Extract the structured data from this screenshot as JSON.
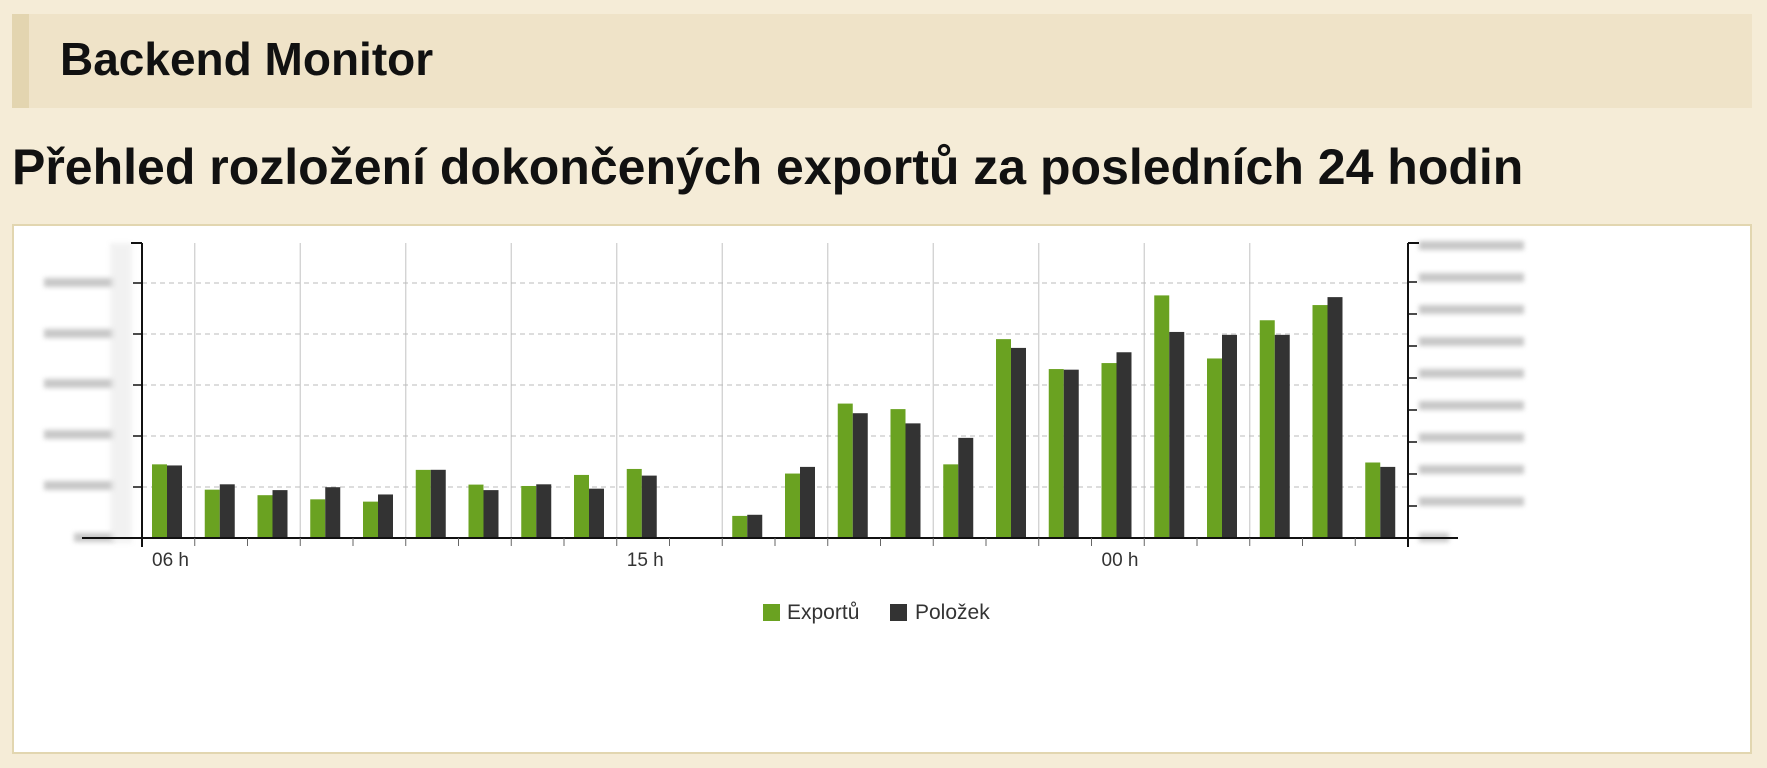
{
  "header": {
    "title": "Backend Monitor"
  },
  "page": {
    "title": "Přehled rozložení dokončených exportů za posledních 24 hodin"
  },
  "colors": {
    "exports": "#6aa221",
    "items": "#333333",
    "axis": "#111111",
    "grid_v": "#cccccc",
    "grid_h": "#bbbbbb"
  },
  "chart_data": {
    "type": "bar",
    "title": "",
    "xlabel": "",
    "ylabel": "",
    "x_tick_labels": [
      "06 h",
      "15 h",
      "00 h"
    ],
    "x_tick_label_positions": [
      0,
      9,
      18
    ],
    "legend_position": "bottom-center",
    "grid": {
      "horizontal": "dashed",
      "vertical": "solid"
    },
    "y_axis_left": {
      "ylim": [
        0,
        5.8
      ],
      "tick_labels_legible": false
    },
    "y_axis_right": {
      "ylim": [
        0,
        9.2
      ],
      "tick_labels_legible": false
    },
    "series": [
      {
        "name": "Exportů",
        "axis": "left",
        "values": [
          1.6,
          1.05,
          0.93,
          0.84,
          0.79,
          1.48,
          1.16,
          1.13,
          1.37,
          1.5,
          0.0,
          0.48,
          1.4,
          2.92,
          2.8,
          1.6,
          4.32,
          3.67,
          3.8,
          5.27,
          3.9,
          4.73,
          5.06,
          1.64
        ]
      },
      {
        "name": "Položek",
        "axis": "right",
        "values": [
          2.5,
          1.85,
          1.65,
          1.75,
          1.5,
          2.35,
          1.65,
          1.85,
          1.7,
          2.15,
          0.0,
          0.8,
          2.45,
          4.3,
          3.95,
          3.45,
          6.55,
          5.8,
          6.4,
          7.1,
          7.0,
          7.0,
          8.3,
          2.45
        ]
      }
    ]
  }
}
